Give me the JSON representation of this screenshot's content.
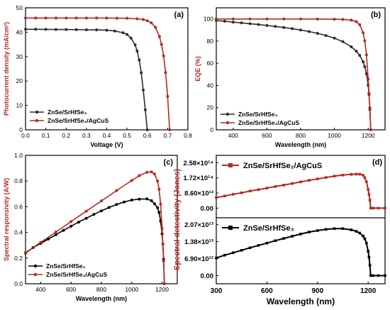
{
  "colors": {
    "s1": "#2e2e2e",
    "s2": "#b22a22",
    "black": "#000000",
    "axis_red": "#b22a22"
  },
  "chart_data": [
    {
      "panel_label": "(a)",
      "type": "line",
      "xlabel": "Voltage (V)",
      "ylabel": "Photocurrent density (mA/cm²)",
      "xlim": [
        0,
        0.8
      ],
      "ylim": [
        0,
        50
      ],
      "xticks": [
        "0.0",
        "0.1",
        "0.2",
        "0.3",
        "0.4",
        "0.5",
        "0.6",
        "0.7",
        "0.8"
      ],
      "yticks": [
        "0",
        "10",
        "20",
        "30",
        "40",
        "50"
      ],
      "legend": "bottom-left",
      "series": [
        {
          "name": "ZnSe/SrHfSe₃",
          "color": "#2e2e2e",
          "x": [
            0,
            0.05,
            0.1,
            0.15,
            0.2,
            0.25,
            0.3,
            0.35,
            0.4,
            0.44,
            0.48,
            0.5,
            0.52,
            0.54,
            0.55,
            0.56,
            0.57,
            0.58,
            0.59,
            0.6
          ],
          "y": [
            41.2,
            41.2,
            41.15,
            41.1,
            41.1,
            41.05,
            41.0,
            40.95,
            40.8,
            40.5,
            39.8,
            39.1,
            37.6,
            34.8,
            32.3,
            28.6,
            23.4,
            16.3,
            8.2,
            0
          ]
        },
        {
          "name": "ZnSe/SrHfSe₃/AgCuS",
          "color": "#b22a22",
          "x": [
            0,
            0.05,
            0.1,
            0.15,
            0.2,
            0.25,
            0.3,
            0.35,
            0.4,
            0.45,
            0.5,
            0.55,
            0.58,
            0.6,
            0.62,
            0.64,
            0.66,
            0.67,
            0.68,
            0.69,
            0.7,
            0.71
          ],
          "y": [
            45.8,
            45.8,
            45.8,
            45.8,
            45.8,
            45.8,
            45.8,
            45.8,
            45.8,
            45.75,
            45.7,
            45.5,
            45.2,
            44.7,
            43.8,
            42.0,
            38.2,
            35.0,
            30.3,
            23.5,
            13.7,
            0
          ]
        }
      ]
    },
    {
      "panel_label": "(b)",
      "type": "line",
      "xlabel": "Wavelength (nm)",
      "ylabel": "EQE (%)",
      "xlim": [
        300,
        1300
      ],
      "ylim": [
        0,
        110
      ],
      "xticks": [
        "400",
        "600",
        "800",
        "1000",
        "1200"
      ],
      "yticks": [
        "0",
        "20",
        "40",
        "60",
        "80",
        "100"
      ],
      "legend": "bottom-left",
      "series": [
        {
          "name": "ZnSe/SrHfSe₃",
          "color": "#2e2e2e",
          "x": [
            300,
            350,
            400,
            450,
            500,
            550,
            600,
            650,
            700,
            750,
            800,
            850,
            900,
            950,
            1000,
            1050,
            1100,
            1130,
            1150,
            1170,
            1180,
            1190,
            1200,
            1205,
            1210,
            1215
          ],
          "y": [
            98.5,
            97.9,
            97.1,
            96.4,
            95.7,
            94.9,
            94.1,
            93.2,
            92.3,
            91.2,
            90.0,
            88.6,
            87.0,
            85.0,
            82.6,
            79.4,
            74.8,
            70.9,
            67.1,
            61.3,
            56.9,
            50.6,
            40.3,
            31.8,
            19.7,
            0
          ]
        },
        {
          "name": "ZnSe/SrHfSe₃/AgCuS",
          "color": "#b22a22",
          "x": [
            300,
            400,
            500,
            600,
            700,
            800,
            900,
            1000,
            1050,
            1100,
            1130,
            1150,
            1170,
            1180,
            1190,
            1200,
            1205,
            1210,
            1215
          ],
          "y": [
            99.9,
            99.9,
            99.9,
            99.9,
            99.9,
            99.9,
            99.8,
            99.7,
            99.5,
            98.9,
            97.5,
            94.8,
            87.5,
            80.3,
            67.6,
            45.9,
            33.0,
            18.0,
            0
          ]
        }
      ]
    },
    {
      "panel_label": "(c)",
      "type": "line",
      "xlabel": "Wavelength (nm)",
      "ylabel": "Spectral responsivity (A/W)",
      "xlim": [
        300,
        1300
      ],
      "ylim": [
        0,
        1.0
      ],
      "xticks": [
        "400",
        "600",
        "800",
        "1000",
        "1200"
      ],
      "yticks": [
        "0.0",
        "0.2",
        "0.4",
        "0.6",
        "0.8",
        "1.0"
      ],
      "legend": "bottom-left",
      "series": [
        {
          "name": "ZnSe/SrHfSe₃",
          "color": "#000000",
          "x": [
            300,
            350,
            400,
            450,
            500,
            550,
            600,
            650,
            700,
            750,
            800,
            850,
            900,
            950,
            1000,
            1050,
            1100,
            1130,
            1150,
            1170,
            1180,
            1190,
            1200,
            1205,
            1210,
            1215
          ],
          "y": [
            0.238,
            0.282,
            0.314,
            0.348,
            0.382,
            0.416,
            0.448,
            0.48,
            0.51,
            0.54,
            0.568,
            0.594,
            0.617,
            0.637,
            0.652,
            0.659,
            0.661,
            0.647,
            0.623,
            0.593,
            0.555,
            0.488,
            0.389,
            0.309,
            0.192,
            0
          ]
        },
        {
          "name": "ZnSe/SrHfSe₃/AgCuS",
          "color": "#b22a22",
          "x": [
            300,
            400,
            500,
            600,
            700,
            800,
            900,
            1000,
            1050,
            1100,
            1130,
            1150,
            1170,
            1180,
            1190,
            1200,
            1205,
            1210,
            1215
          ],
          "y": [
            0.242,
            0.322,
            0.403,
            0.484,
            0.565,
            0.645,
            0.726,
            0.804,
            0.842,
            0.868,
            0.872,
            0.855,
            0.8,
            0.736,
            0.621,
            0.43,
            0.31,
            0.176,
            0
          ]
        }
      ]
    },
    {
      "panel_label": "(d)",
      "type": "line",
      "xlabel": "Wavelength (nm)",
      "ylabel": "Spectral detectivity (Jones)",
      "xlim": [
        300,
        1300
      ],
      "xticks": [
        "300",
        "600",
        "900",
        "1200"
      ],
      "subplots": [
        {
          "ylim": [
            -55000000000000.0,
            300000000000000.0
          ],
          "yticks": [
            "2.58×10¹⁴",
            "1.72×10¹⁴",
            "8.60×10¹³",
            "0.00"
          ],
          "ytick_values": [
            258000000000000.0,
            172000000000000.0,
            86000000000000.0,
            0
          ],
          "series": [
            {
              "name": "ZnSe/SrHfSe₂/AgCuS",
              "color": "#b22a22",
              "x": [
                300,
                350,
                400,
                450,
                500,
                550,
                600,
                650,
                700,
                750,
                800,
                850,
                900,
                950,
                1000,
                1050,
                1100,
                1130,
                1150,
                1170,
                1180,
                1190,
                1200,
                1205,
                1210,
                1215,
                1230,
                1260,
                1300
              ],
              "y": [
                60000000000000.0,
                69000000000000.0,
                79000000000000.0,
                87000000000000.0,
                97000000000000.0,
                105000000000000.0,
                114000000000000.0,
                123000000000000.0,
                131000000000000.0,
                140000000000000.0,
                149000000000000.0,
                158000000000000.0,
                166000000000000.0,
                174000000000000.0,
                182000000000000.0,
                188000000000000.0,
                192000000000000.0,
                193000000000000.0,
                193000000000000.0,
                187000000000000.0,
                173000000000000.0,
                150000000000000.0,
                105000000000000.0,
                78000000000000.0,
                45000000000000.0,
                0,
                0,
                0,
                0
              ]
            }
          ]
        },
        {
          "ylim": [
            -3300000000000.0,
            23500000000000.0
          ],
          "yticks": [
            "2.07×10¹³",
            "1.38×10¹³",
            "6.90×10¹²",
            "0.00"
          ],
          "ytick_values": [
            20700000000000.0,
            13800000000000.0,
            6900000000000.0,
            0
          ],
          "series": [
            {
              "name": "ZnSe/SrHfSe₃",
              "color": "#000000",
              "x": [
                300,
                350,
                400,
                450,
                500,
                550,
                600,
                650,
                700,
                750,
                800,
                850,
                900,
                950,
                1000,
                1050,
                1100,
                1130,
                1150,
                1170,
                1180,
                1190,
                1200,
                1205,
                1210,
                1215,
                1230,
                1260,
                1300
              ],
              "y": [
                7200000000000.0,
                8300000000000.0,
                9300000000000.0,
                10300000000000.0,
                11300000000000.0,
                12300000000000.0,
                13200000000000.0,
                14200000000000.0,
                15100000000000.0,
                16000000000000.0,
                16900000000000.0,
                17700000000000.0,
                18300000000000.0,
                18800000000000.0,
                19100000000000.0,
                19100000000000.0,
                18600000000000.0,
                18000000000000.0,
                17300000000000.0,
                16100000000000.0,
                15000000000000.0,
                13200000000000.0,
                9900000000000.0,
                7500000000000.0,
                4200000000000.0,
                0,
                0,
                0,
                0
              ]
            }
          ]
        }
      ]
    }
  ]
}
